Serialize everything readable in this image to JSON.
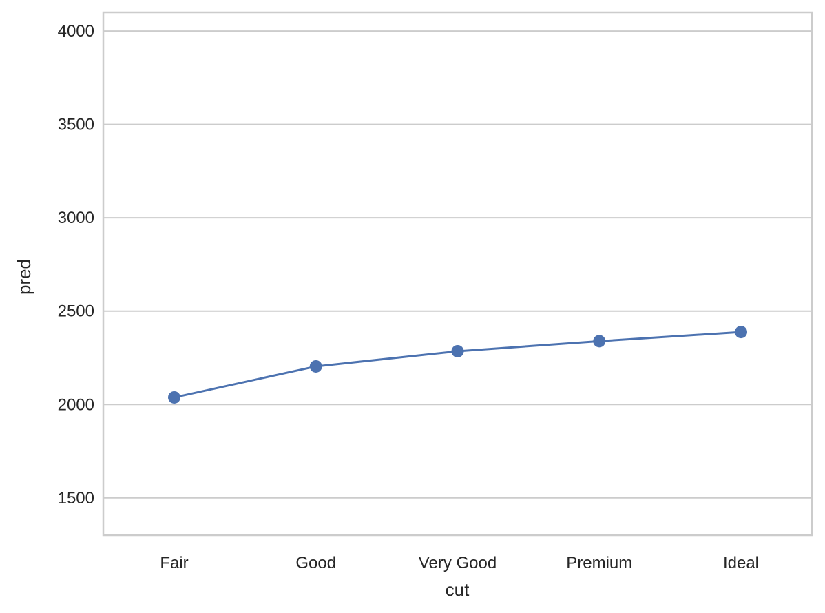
{
  "chart_data": {
    "type": "line",
    "categories": [
      "Fair",
      "Good",
      "Very Good",
      "Premium",
      "Ideal"
    ],
    "series": [
      {
        "values": [
          2038,
          2204,
          2285,
          2339,
          2388
        ]
      }
    ],
    "xlabel": "cut",
    "ylabel": "pred",
    "ylim": [
      1300,
      4100
    ],
    "yticks": [
      1500,
      2000,
      2500,
      3000,
      3500,
      4000
    ],
    "grid": "horizontal",
    "line_color": "#4c72b0",
    "marker": "circle"
  }
}
